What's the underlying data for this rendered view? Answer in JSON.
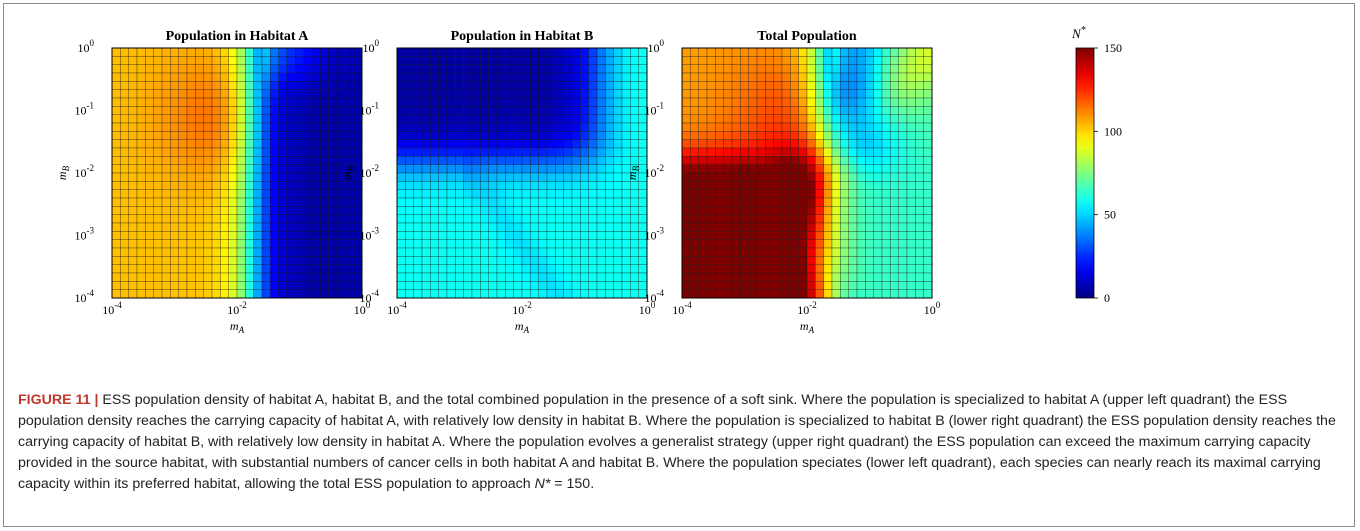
{
  "chart_data": [
    {
      "type": "heatmap",
      "title": "Population in Habitat A",
      "xlabel": "mA",
      "ylabel": "mB",
      "x_scale": "log",
      "y_scale": "log",
      "xlim": [
        0.0001,
        1
      ],
      "ylim": [
        0.0001,
        1
      ],
      "grid_size": [
        30,
        30
      ],
      "x_ticks": [
        {
          "base": "10",
          "exp": "-4"
        },
        {
          "base": "10",
          "exp": "-2"
        },
        {
          "base": "10",
          "exp": "0"
        }
      ],
      "y_ticks": [
        {
          "base": "10",
          "exp": "0"
        },
        {
          "base": "10",
          "exp": "-1"
        },
        {
          "base": "10",
          "exp": "-2"
        },
        {
          "base": "10",
          "exp": "-3"
        },
        {
          "base": "10",
          "exp": "-4"
        }
      ],
      "approx_values": {
        "upper_left_plateau": 105,
        "upper_left_orange_region": 115,
        "lower_right_low": 5
      }
    },
    {
      "type": "heatmap",
      "title": "Population in Habitat B",
      "xlabel": "mA",
      "ylabel": "mB",
      "x_scale": "log",
      "y_scale": "log",
      "xlim": [
        0.0001,
        1
      ],
      "ylim": [
        0.0001,
        1
      ],
      "grid_size": [
        30,
        30
      ],
      "x_ticks": [
        {
          "base": "10",
          "exp": "-4"
        },
        {
          "base": "10",
          "exp": "-2"
        },
        {
          "base": "10",
          "exp": "0"
        }
      ],
      "y_ticks": [
        {
          "base": "10",
          "exp": "0"
        },
        {
          "base": "10",
          "exp": "-1"
        },
        {
          "base": "10",
          "exp": "-2"
        },
        {
          "base": "10",
          "exp": "-3"
        },
        {
          "base": "10",
          "exp": "-4"
        }
      ],
      "approx_values": {
        "upper_left_low": 5,
        "lower_right_plateau": 60,
        "lower_left": 57
      }
    },
    {
      "type": "heatmap",
      "title": "Total Population",
      "xlabel": "mA",
      "ylabel": "mB",
      "x_scale": "log",
      "y_scale": "log",
      "xlim": [
        0.0001,
        1
      ],
      "ylim": [
        0.0001,
        1
      ],
      "grid_size": [
        30,
        30
      ],
      "x_ticks": [
        {
          "base": "10",
          "exp": "-4"
        },
        {
          "base": "10",
          "exp": "-2"
        },
        {
          "base": "10",
          "exp": "0"
        }
      ],
      "y_ticks": [
        {
          "base": "10",
          "exp": "0"
        },
        {
          "base": "10",
          "exp": "-1"
        },
        {
          "base": "10",
          "exp": "-2"
        },
        {
          "base": "10",
          "exp": "-3"
        },
        {
          "base": "10",
          "exp": "-4"
        }
      ],
      "approx_values": {
        "lower_left_max": 145,
        "diagonal_ridge": 125,
        "lower_right": 58,
        "upper_left": 105
      }
    }
  ],
  "colorbar": {
    "label": "N*",
    "colormap": "jet",
    "min": 0,
    "max": 150,
    "ticks": [
      "150",
      "100",
      "50",
      "0"
    ]
  },
  "caption": {
    "label": "FIGURE 11 |",
    "text": " ESS population density of habitat A, habitat B, and the total combined population in the presence of a soft sink. Where the population is specialized to habitat A (upper left quadrant) the ESS population density reaches the carrying capacity of habitat A, with relatively low density in habitat B. Where the population is specialized to habitat B (lower right quadrant) the ESS population density reaches the carrying capacity of habitat B, with relatively low density in habitat A. Where the population evolves a generalist strategy (upper right quadrant) the ESS population can exceed the maximum carrying capacity provided in the source habitat, with substantial numbers of cancer cells in both habitat A and habitat B. Where the population speciates (lower left quadrant), each species can nearly reach its maximal carrying capacity within its preferred habitat, allowing the total ESS population to approach ",
    "nstar": "N*",
    "tail": " = 150."
  }
}
